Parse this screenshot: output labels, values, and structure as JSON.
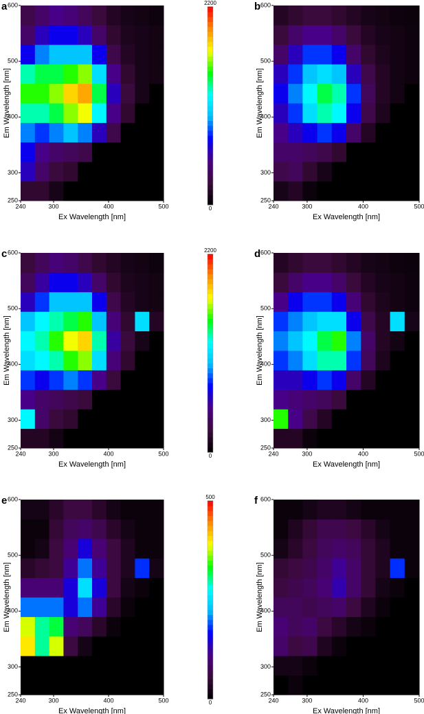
{
  "chart_data": [
    {
      "type": "heatmap",
      "panel_label": "a",
      "xlabel": "Ex Wavelength [nm]",
      "ylabel": "Em Wavelength [nm]",
      "xlim": [
        240,
        500
      ],
      "ylim": [
        250,
        600
      ],
      "xticks": [
        240,
        300,
        400,
        500
      ],
      "yticks": [
        250,
        300,
        400,
        500,
        600
      ],
      "xbins": [
        240,
        266,
        292,
        318,
        344,
        370,
        396,
        422,
        448,
        474,
        500
      ],
      "ybins": [
        250,
        285,
        320,
        355,
        390,
        425,
        460,
        495,
        530,
        565,
        600
      ],
      "clim": [
        0,
        2200
      ],
      "colorbar_ticks": [
        0,
        2200
      ],
      "colormap": [
        "#000000",
        "#3b0a3b",
        "#4b0082",
        "#0000ff",
        "#00bfff",
        "#00ffff",
        "#00ff00",
        "#ffff00",
        "#ff8c00",
        "#ff0000"
      ],
      "z": [
        [
          200,
          200,
          100,
          0,
          0,
          0,
          0,
          0,
          0,
          0
        ],
        [
          600,
          400,
          250,
          200,
          0,
          0,
          0,
          0,
          0,
          0
        ],
        [
          700,
          500,
          400,
          350,
          300,
          0,
          0,
          0,
          0,
          0
        ],
        [
          900,
          800,
          900,
          1000,
          900,
          600,
          300,
          0,
          0,
          0
        ],
        [
          1300,
          1300,
          1400,
          1600,
          1700,
          1200,
          500,
          200,
          0,
          0
        ],
        [
          1500,
          1500,
          1600,
          1800,
          1900,
          1400,
          600,
          250,
          100,
          0
        ],
        [
          1300,
          1400,
          1400,
          1500,
          1600,
          1100,
          500,
          200,
          100,
          80
        ],
        [
          700,
          900,
          1000,
          1000,
          1000,
          700,
          300,
          150,
          100,
          80
        ],
        [
          400,
          600,
          700,
          700,
          600,
          400,
          200,
          120,
          100,
          80
        ],
        [
          300,
          400,
          500,
          450,
          350,
          250,
          150,
          100,
          80,
          60
        ]
      ]
    },
    {
      "type": "heatmap",
      "panel_label": "b",
      "xlabel": "Ex Wavelength [nm]",
      "ylabel": "Em Wavelength [nm]",
      "xlim": [
        240,
        500
      ],
      "ylim": [
        250,
        600
      ],
      "xticks": [
        240,
        300,
        400,
        500
      ],
      "yticks": [
        250,
        300,
        400,
        500,
        600
      ],
      "xbins": [
        240,
        266,
        292,
        318,
        344,
        370,
        396,
        422,
        448,
        474,
        500
      ],
      "ybins": [
        250,
        285,
        320,
        355,
        390,
        425,
        460,
        495,
        530,
        565,
        600
      ],
      "clim": [
        0,
        2200
      ],
      "colormap": [
        "#000000",
        "#3b0a3b",
        "#4b0082",
        "#0000ff",
        "#00bfff",
        "#00ffff",
        "#00ff00",
        "#ffff00",
        "#ff8c00",
        "#ff0000"
      ],
      "z": [
        [
          100,
          150,
          50,
          0,
          0,
          0,
          0,
          0,
          0,
          0
        ],
        [
          300,
          350,
          200,
          100,
          0,
          0,
          0,
          0,
          0,
          0
        ],
        [
          400,
          400,
          350,
          300,
          200,
          0,
          0,
          0,
          0,
          0
        ],
        [
          500,
          600,
          700,
          800,
          700,
          400,
          150,
          0,
          0,
          0
        ],
        [
          600,
          800,
          1100,
          1300,
          1200,
          700,
          300,
          120,
          0,
          0
        ],
        [
          700,
          900,
          1200,
          1400,
          1300,
          800,
          350,
          150,
          80,
          0
        ],
        [
          600,
          800,
          1000,
          1100,
          1000,
          600,
          300,
          150,
          80,
          60
        ],
        [
          400,
          600,
          800,
          800,
          700,
          400,
          200,
          120,
          80,
          60
        ],
        [
          250,
          400,
          500,
          500,
          400,
          250,
          150,
          100,
          80,
          60
        ],
        [
          150,
          200,
          250,
          250,
          200,
          150,
          100,
          80,
          60,
          50
        ]
      ]
    },
    {
      "type": "heatmap",
      "panel_label": "c",
      "xlabel": "Ex Wavelength [nm]",
      "ylabel": "Em Wavelength [nm]",
      "xlim": [
        240,
        500
      ],
      "ylim": [
        250,
        600
      ],
      "xticks": [
        240,
        300,
        400,
        500
      ],
      "yticks": [
        250,
        300,
        400,
        500,
        600
      ],
      "xbins": [
        240,
        266,
        292,
        318,
        344,
        370,
        396,
        422,
        448,
        474,
        500
      ],
      "ybins": [
        250,
        285,
        320,
        355,
        390,
        425,
        460,
        495,
        530,
        565,
        600
      ],
      "clim": [
        0,
        2200
      ],
      "colorbar_ticks": [
        0,
        2200
      ],
      "colormap": [
        "#000000",
        "#3b0a3b",
        "#4b0082",
        "#0000ff",
        "#00bfff",
        "#00ffff",
        "#00ff00",
        "#ffff00",
        "#ff8c00",
        "#ff0000"
      ],
      "z": [
        [
          150,
          150,
          80,
          0,
          0,
          0,
          0,
          0,
          0,
          0
        ],
        [
          1200,
          400,
          250,
          200,
          0,
          0,
          0,
          0,
          0,
          0
        ],
        [
          500,
          400,
          350,
          300,
          250,
          0,
          0,
          0,
          0,
          0
        ],
        [
          800,
          700,
          800,
          900,
          800,
          500,
          250,
          0,
          0,
          0
        ],
        [
          1100,
          1200,
          1300,
          1500,
          1600,
          1100,
          450,
          200,
          0,
          0
        ],
        [
          1200,
          1300,
          1500,
          1700,
          1800,
          1300,
          550,
          250,
          100,
          0
        ],
        [
          1000,
          1200,
          1300,
          1400,
          1500,
          1000,
          450,
          200,
          1100,
          150
        ],
        [
          600,
          800,
          1000,
          1000,
          1000,
          700,
          300,
          150,
          100,
          80
        ],
        [
          350,
          550,
          700,
          700,
          600,
          400,
          200,
          120,
          100,
          80
        ],
        [
          250,
          350,
          450,
          400,
          300,
          200,
          150,
          100,
          80,
          60
        ]
      ]
    },
    {
      "type": "heatmap",
      "panel_label": "d",
      "xlabel": "Ex Wavelength [nm]",
      "ylabel": "Em Wavelength [nm]",
      "xlim": [
        240,
        500
      ],
      "ylim": [
        250,
        600
      ],
      "xticks": [
        240,
        300,
        400,
        500
      ],
      "yticks": [
        250,
        300,
        400,
        500,
        600
      ],
      "xbins": [
        240,
        266,
        292,
        318,
        344,
        370,
        396,
        422,
        448,
        474,
        500
      ],
      "ybins": [
        250,
        285,
        320,
        355,
        390,
        425,
        460,
        495,
        530,
        565,
        600
      ],
      "clim": [
        0,
        2200
      ],
      "colormap": [
        "#000000",
        "#3b0a3b",
        "#4b0082",
        "#0000ff",
        "#00bfff",
        "#00ffff",
        "#00ff00",
        "#ffff00",
        "#ff8c00",
        "#ff0000"
      ],
      "z": [
        [
          150,
          150,
          50,
          0,
          0,
          0,
          0,
          0,
          0,
          0
        ],
        [
          1500,
          500,
          300,
          150,
          0,
          0,
          0,
          0,
          0,
          0
        ],
        [
          500,
          450,
          400,
          350,
          250,
          0,
          0,
          0,
          0,
          0
        ],
        [
          600,
          600,
          700,
          800,
          700,
          400,
          150,
          0,
          0,
          0
        ],
        [
          800,
          900,
          1100,
          1300,
          1300,
          800,
          350,
          120,
          0,
          0
        ],
        [
          900,
          1000,
          1200,
          1400,
          1500,
          900,
          400,
          150,
          80,
          0
        ],
        [
          800,
          900,
          1000,
          1100,
          1100,
          700,
          300,
          150,
          1100,
          100
        ],
        [
          500,
          700,
          800,
          800,
          700,
          450,
          200,
          120,
          80,
          60
        ],
        [
          250,
          400,
          500,
          500,
          400,
          250,
          150,
          100,
          80,
          60
        ],
        [
          150,
          200,
          250,
          250,
          200,
          150,
          100,
          80,
          60,
          50
        ]
      ]
    },
    {
      "type": "heatmap",
      "panel_label": "e",
      "xlabel": "Ex Wavelength [nm]",
      "ylabel": "Em Wavelength [nm]",
      "xlim": [
        240,
        500
      ],
      "ylim": [
        250,
        600
      ],
      "xticks": [
        240,
        300,
        400,
        500
      ],
      "yticks": [
        250,
        300,
        400,
        500,
        600
      ],
      "xbins": [
        240,
        266,
        292,
        318,
        344,
        370,
        396,
        422,
        448,
        474,
        500
      ],
      "ybins": [
        250,
        285,
        320,
        355,
        390,
        425,
        460,
        495,
        530,
        565,
        600
      ],
      "clim": [
        0,
        500
      ],
      "colorbar_ticks": [
        0,
        500
      ],
      "colormap": [
        "#000000",
        "#3b0a3b",
        "#4b0082",
        "#0000ff",
        "#00bfff",
        "#00ffff",
        "#00ff00",
        "#ffff00",
        "#ff8c00",
        "#ff0000"
      ],
      "z": [
        [
          0,
          0,
          0,
          0,
          0,
          0,
          0,
          0,
          0,
          0
        ],
        [
          0,
          0,
          0,
          0,
          0,
          0,
          0,
          0,
          0,
          0
        ],
        [
          400,
          300,
          380,
          60,
          20,
          0,
          0,
          0,
          0,
          0
        ],
        [
          380,
          300,
          320,
          100,
          80,
          40,
          10,
          0,
          0,
          0
        ],
        [
          200,
          200,
          200,
          150,
          200,
          120,
          40,
          10,
          0,
          0
        ],
        [
          100,
          100,
          100,
          150,
          250,
          150,
          60,
          20,
          10,
          0
        ],
        [
          40,
          50,
          60,
          120,
          200,
          120,
          60,
          30,
          180,
          20
        ],
        [
          10,
          20,
          60,
          100,
          150,
          100,
          60,
          30,
          10,
          10
        ],
        [
          10,
          10,
          50,
          80,
          90,
          70,
          40,
          20,
          10,
          10
        ],
        [
          20,
          20,
          40,
          60,
          60,
          40,
          20,
          10,
          10,
          10
        ]
      ]
    },
    {
      "type": "heatmap",
      "panel_label": "f",
      "xlabel": "Ex Wavelength [nm]",
      "ylabel": "Em Wavelength [nm]",
      "xlim": [
        240,
        500
      ],
      "ylim": [
        250,
        600
      ],
      "xticks": [
        240,
        300,
        400,
        500
      ],
      "yticks": [
        250,
        300,
        400,
        500,
        600
      ],
      "xbins": [
        240,
        266,
        292,
        318,
        344,
        370,
        396,
        422,
        448,
        474,
        500
      ],
      "ybins": [
        250,
        285,
        320,
        355,
        390,
        425,
        460,
        495,
        530,
        565,
        600
      ],
      "clim": [
        0,
        500
      ],
      "colormap": [
        "#000000",
        "#3b0a3b",
        "#4b0082",
        "#0000ff",
        "#00bfff",
        "#00ffff",
        "#00ff00",
        "#ffff00",
        "#ff8c00",
        "#ff0000"
      ],
      "z": [
        [
          0,
          10,
          0,
          0,
          0,
          0,
          0,
          0,
          0,
          0
        ],
        [
          20,
          20,
          10,
          0,
          0,
          0,
          0,
          0,
          0,
          0
        ],
        [
          90,
          60,
          70,
          30,
          10,
          0,
          0,
          0,
          0,
          0
        ],
        [
          100,
          80,
          90,
          60,
          40,
          20,
          10,
          0,
          0,
          0
        ],
        [
          80,
          80,
          70,
          80,
          90,
          60,
          30,
          10,
          0,
          0
        ],
        [
          60,
          70,
          80,
          100,
          130,
          90,
          50,
          20,
          10,
          0
        ],
        [
          50,
          60,
          70,
          90,
          120,
          90,
          50,
          30,
          180,
          10
        ],
        [
          20,
          40,
          60,
          80,
          90,
          80,
          50,
          30,
          10,
          10
        ],
        [
          10,
          30,
          50,
          70,
          70,
          60,
          40,
          20,
          10,
          10
        ],
        [
          10,
          10,
          20,
          30,
          30,
          20,
          10,
          10,
          10,
          10
        ]
      ]
    }
  ]
}
